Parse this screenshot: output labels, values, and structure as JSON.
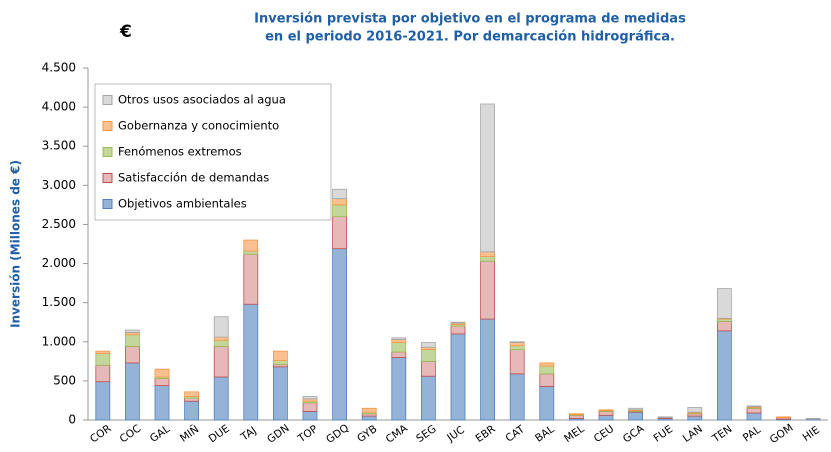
{
  "chart_data": {
    "type": "stacked_bar",
    "annotation": "€",
    "title": [
      "Inversión prevista por objetivo en el programa de medidas",
      "en el periodo 2016-2021. Por demarcación hidrográfica."
    ],
    "y_label": "Inversión (Millones de €)",
    "categories": [
      "COR",
      "COC",
      "GAL",
      "MIÑ",
      "DUE",
      "TAJ",
      "GDN",
      "TOP",
      "GDQ",
      "GYB",
      "CMA",
      "SEG",
      "JUC",
      "EBR",
      "CAT",
      "BAL",
      "MEL",
      "CEU",
      "GCA",
      "FUE",
      "LAN",
      "TEN",
      "PAL",
      "GOM",
      "HIE"
    ],
    "series": [
      {
        "name": "Objetivos ambientales",
        "color": "#95b3d7",
        "values": [
          490,
          730,
          440,
          240,
          550,
          1480,
          680,
          110,
          2190,
          50,
          800,
          560,
          1100,
          1290,
          590,
          430,
          20,
          60,
          100,
          20,
          50,
          1140,
          90,
          10,
          10
        ]
      },
      {
        "name": "Satisfacción de demandas",
        "color": "#e6b9b8",
        "values": [
          210,
          210,
          90,
          40,
          390,
          640,
          30,
          110,
          410,
          30,
          70,
          190,
          100,
          740,
          310,
          160,
          40,
          50,
          10,
          10,
          30,
          120,
          60,
          20,
          0
        ]
      },
      {
        "name": "Fenómenos extremos",
        "color": "#c3d69b",
        "values": [
          150,
          150,
          20,
          20,
          80,
          40,
          50,
          20,
          150,
          20,
          120,
          150,
          20,
          60,
          50,
          100,
          10,
          10,
          10,
          0,
          10,
          30,
          10,
          0,
          0
        ]
      },
      {
        "name": "Gobernanza y conocimiento",
        "color": "#fac090",
        "values": [
          30,
          30,
          100,
          60,
          40,
          140,
          120,
          30,
          80,
          50,
          40,
          30,
          20,
          60,
          40,
          40,
          10,
          10,
          10,
          0,
          10,
          10,
          10,
          10,
          0
        ]
      },
      {
        "name": "Otros usos asociados al agua",
        "color": "#d9d9d9",
        "values": [
          0,
          30,
          0,
          0,
          260,
          0,
          0,
          30,
          120,
          0,
          20,
          60,
          10,
          1890,
          10,
          0,
          0,
          0,
          20,
          10,
          60,
          380,
          10,
          0,
          10
        ]
      }
    ],
    "ylim": [
      0,
      4500
    ],
    "yticks": [
      0,
      500,
      {
        "value": 1000,
        "label": "1.000"
      },
      {
        "value": 1500,
        "label": "1.500"
      },
      {
        "value": 2000,
        "label": "2.000"
      },
      {
        "value": 2500,
        "label": "2.500"
      },
      {
        "value": 3000,
        "label": "3.000"
      },
      {
        "value": 3500,
        "label": "3.500"
      },
      {
        "value": 4000,
        "label": "4.000"
      },
      {
        "value": 4500,
        "label": "4.500"
      }
    ],
    "grid": false,
    "legend": "top-left"
  }
}
